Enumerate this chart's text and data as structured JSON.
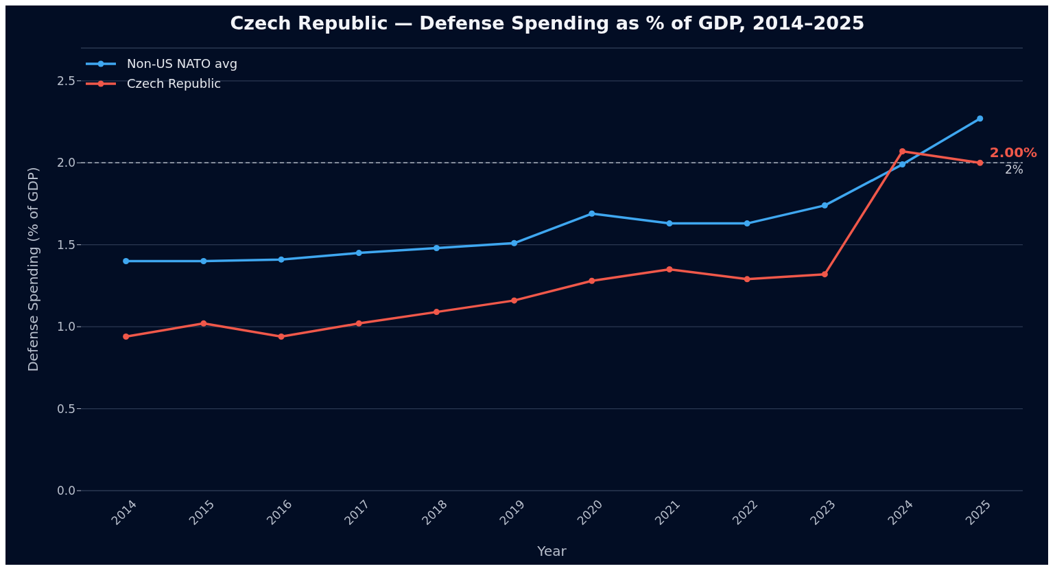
{
  "chart_data": {
    "type": "line",
    "title": "Czech Republic — Defense Spending as % of GDP, 2014–2025",
    "xlabel": "Year",
    "ylabel": "Defense Spending (% of GDP)",
    "categories": [
      "2014",
      "2015",
      "2016",
      "2017",
      "2018",
      "2019",
      "2020",
      "2021",
      "2022",
      "2023",
      "2024",
      "2025"
    ],
    "series": [
      {
        "name": "Non-US NATO avg",
        "color": "#3fa7f0",
        "values": [
          1.4,
          1.4,
          1.41,
          1.45,
          1.48,
          1.51,
          1.69,
          1.63,
          1.63,
          1.74,
          1.99,
          2.27
        ]
      },
      {
        "name": "Czech Republic",
        "color": "#f0584a",
        "values": [
          0.94,
          1.02,
          0.94,
          1.02,
          1.09,
          1.16,
          1.28,
          1.35,
          1.29,
          1.32,
          2.07,
          2.0
        ]
      }
    ],
    "ylim": [
      0,
      2.7
    ],
    "yticks": [
      {
        "value": 0,
        "label": "0.0"
      },
      0.5,
      {
        "value": 1,
        "label": "1.0"
      },
      1.5,
      {
        "value": 2,
        "label": "2.0"
      },
      2.5
    ],
    "ref_lines": [
      {
        "axis": "y",
        "value": 2.0,
        "label": "2%",
        "color": "#c8ccd6",
        "line_style": "dashed"
      }
    ],
    "annotations": [
      {
        "text": "2.00%",
        "x": "2025",
        "y": 2.0
      }
    ],
    "grid": "y",
    "legend": "top left",
    "marker": "circle",
    "line_style": "solid"
  }
}
